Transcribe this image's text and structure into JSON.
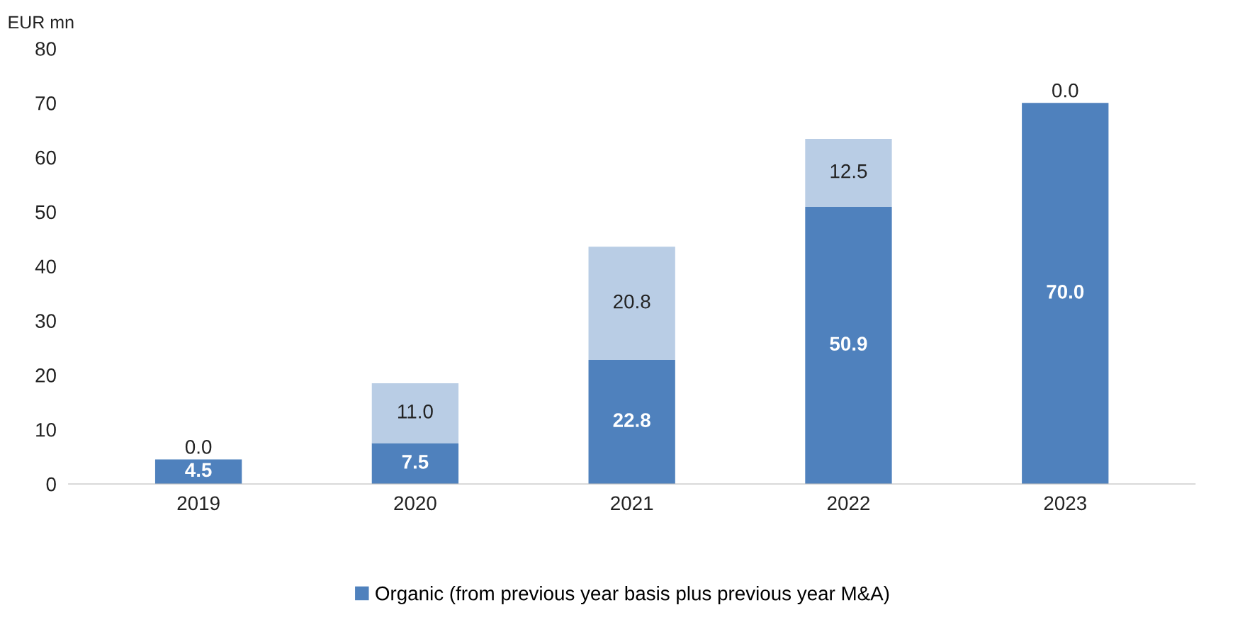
{
  "chart_data": {
    "type": "bar",
    "stacked": true,
    "ylabel": "EUR mn",
    "categories": [
      "2019",
      "2020",
      "2021",
      "2022",
      "2023"
    ],
    "series": [
      {
        "name": "Organic (from previous year basis plus previous year M&A)",
        "color": "#4f81bd",
        "values": [
          4.5,
          7.5,
          22.8,
          50.9,
          70.0
        ],
        "value_labels": [
          "4.5",
          "7.5",
          "22.8",
          "50.9",
          "70.0"
        ]
      },
      {
        "color": "#b9cde5",
        "values": [
          0.0,
          11.0,
          20.8,
          12.5,
          0.0
        ],
        "value_labels": [
          "0.0",
          "11.0",
          "20.8",
          "12.5",
          "0.0"
        ]
      }
    ],
    "ylim": [
      0,
      80
    ],
    "yticks": [
      0,
      10,
      20,
      30,
      40,
      50,
      60,
      70,
      80
    ],
    "grid": false,
    "legend": "bottom"
  }
}
